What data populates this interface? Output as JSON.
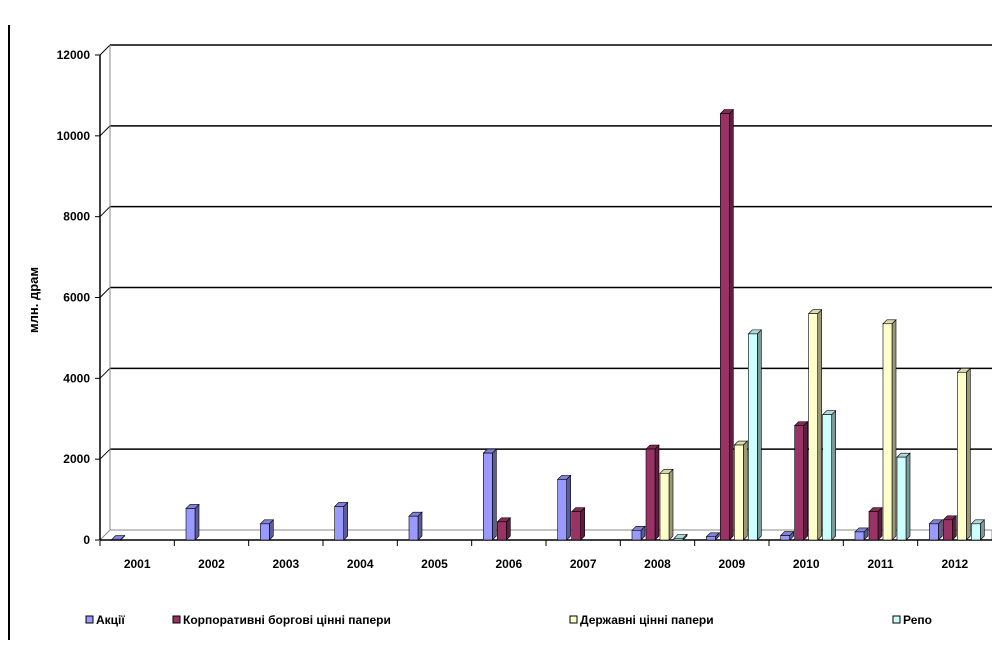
{
  "chart_data": {
    "type": "bar",
    "title": "",
    "xlabel": "",
    "ylabel": "млн. драм",
    "ylim": [
      0,
      12000
    ],
    "yticks": [
      "0",
      "2000",
      "4000",
      "6000",
      "8000",
      "10000",
      "12000"
    ],
    "grid": true,
    "legend_position": "bottom",
    "categories": [
      "2001",
      "2002",
      "2003",
      "2004",
      "2005",
      "2006",
      "2007",
      "2008",
      "2009",
      "2010",
      "2011",
      "2012"
    ],
    "series": [
      {
        "name": "Акції",
        "color": "#9999ff",
        "values": [
          10,
          780,
          400,
          830,
          590,
          2150,
          1500,
          240,
          80,
          110,
          200,
          400
        ]
      },
      {
        "name": "Корпоративні боргові цінні папери",
        "color": "#993366",
        "values": [
          0,
          0,
          0,
          0,
          0,
          450,
          700,
          2250,
          10550,
          2830,
          700,
          500
        ]
      },
      {
        "name": "Державні цінні папери",
        "color": "#ffffcc",
        "values": [
          0,
          0,
          0,
          0,
          0,
          0,
          0,
          1650,
          2350,
          5600,
          5350,
          4150
        ]
      },
      {
        "name": "Репо",
        "color": "#ccffff",
        "values": [
          0,
          0,
          0,
          0,
          0,
          0,
          0,
          40,
          5100,
          3100,
          2050,
          400
        ]
      }
    ]
  }
}
